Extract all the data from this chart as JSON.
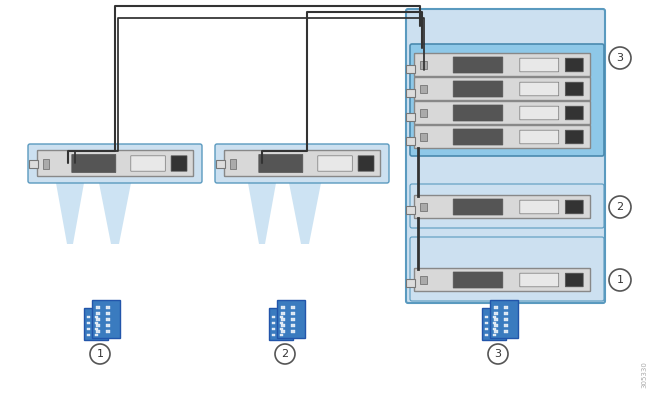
{
  "bg_color": "#ffffff",
  "light_blue": "#add8e6",
  "steel_blue": "#5b9bd5",
  "switch_bg": "#cce4f0",
  "switch_darker_bg": "#a8cce0",
  "switch_face": "#d8d8d8",
  "switch_face_dark": "#c0c0c0",
  "switch_border": "#888888",
  "cable_color": "#333333",
  "beam_color": "#b8d8ee",
  "building_color": "#3a7bbf",
  "circle_label_color": "#555555",
  "figure_size": [
    6.5,
    3.96
  ],
  "dpi": 100,
  "watermark": "305330"
}
